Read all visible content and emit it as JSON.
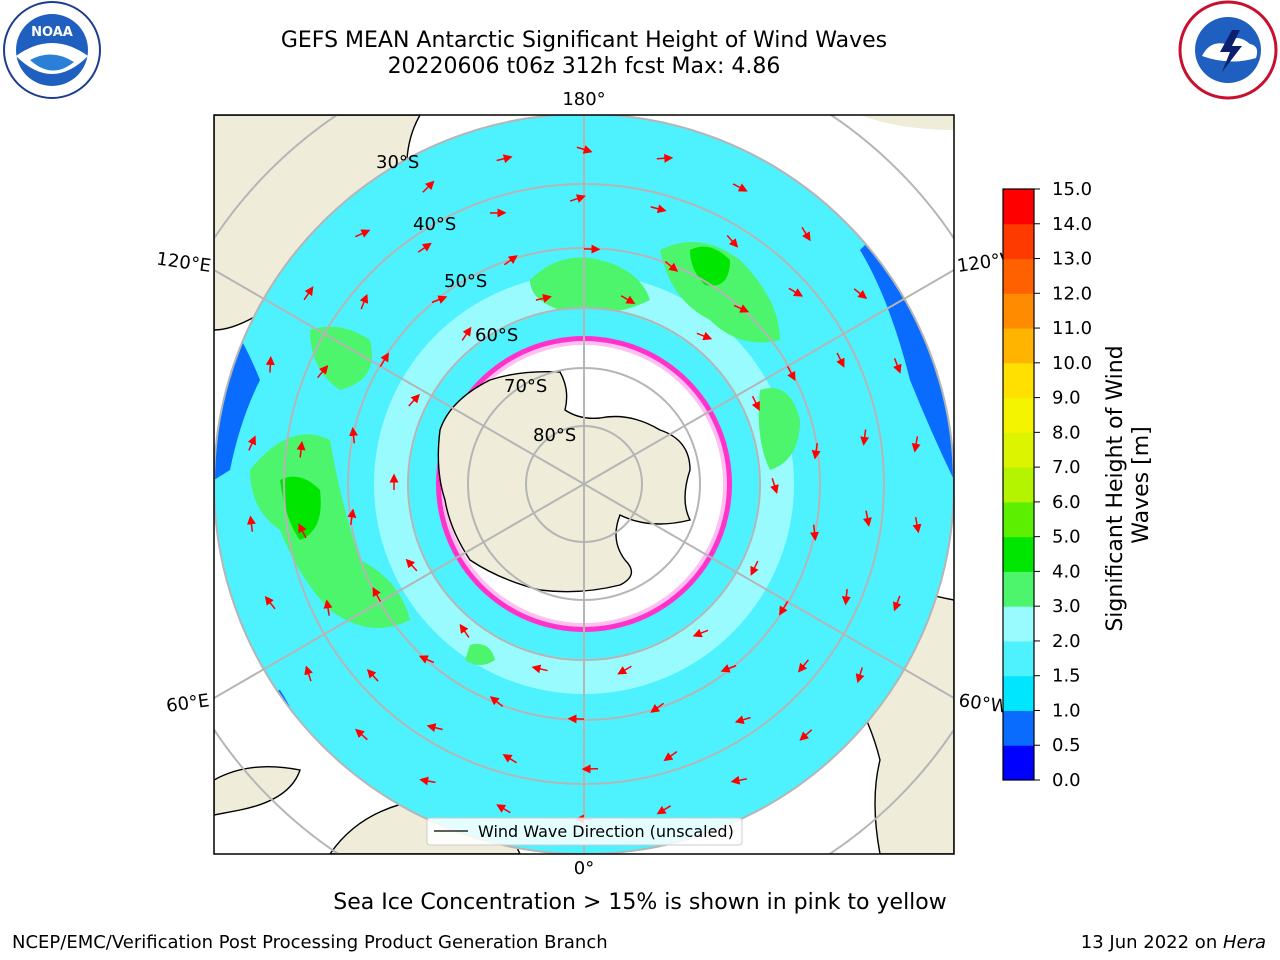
{
  "header": {
    "title_line1": "GEFS MEAN Antarctic Significant Height of Wind Waves",
    "title_line2": "20220606 t06z 312h fcst   Max: 4.86"
  },
  "logos": {
    "left": "noara-logo",
    "left_ring_text": "NATIONAL OCEANIC AND ATMOSPHERIC ADMINISTRATION · U.S. DEPARTMENT OF COMMERCE",
    "left_center_text": "NOAA",
    "right": "nws-logo",
    "right_ring_text": "NATIONAL WEATHER SERVICE"
  },
  "map": {
    "longitude_labels": [
      "180°",
      "120°E",
      "120°W",
      "60°E",
      "60°W",
      "0°"
    ],
    "latitude_labels": [
      "30°S",
      "40°S",
      "50°S",
      "60°S",
      "70°S",
      "80°S"
    ],
    "legend_label": "Wind Wave Direction (unscaled)"
  },
  "colorbar": {
    "label": "Significant Height of Wind Waves [m]",
    "ticks": [
      "0.0",
      "0.5",
      "1.0",
      "1.5",
      "2.0",
      "3.0",
      "4.0",
      "5.0",
      "6.0",
      "7.0",
      "8.0",
      "9.0",
      "10.0",
      "11.0",
      "12.0",
      "13.0",
      "14.0",
      "15.0"
    ],
    "colors": [
      "#0000ff",
      "#0a6cff",
      "#00e6ff",
      "#4ef2ff",
      "#9afbff",
      "#4cf56c",
      "#00e600",
      "#5cf000",
      "#b4f400",
      "#dcf400",
      "#f4f400",
      "#ffe000",
      "#ffb400",
      "#ff8c00",
      "#ff6000",
      "#ff3a00",
      "#ff0000"
    ]
  },
  "footer": {
    "caption": "Sea Ice Concentration > 15% is shown in pink to yellow",
    "credit": "NCEP/EMC/Verification Post Processing Product Generation Branch",
    "date_prefix": "13 Jun 2022 on ",
    "date_machine": "Hera"
  }
}
